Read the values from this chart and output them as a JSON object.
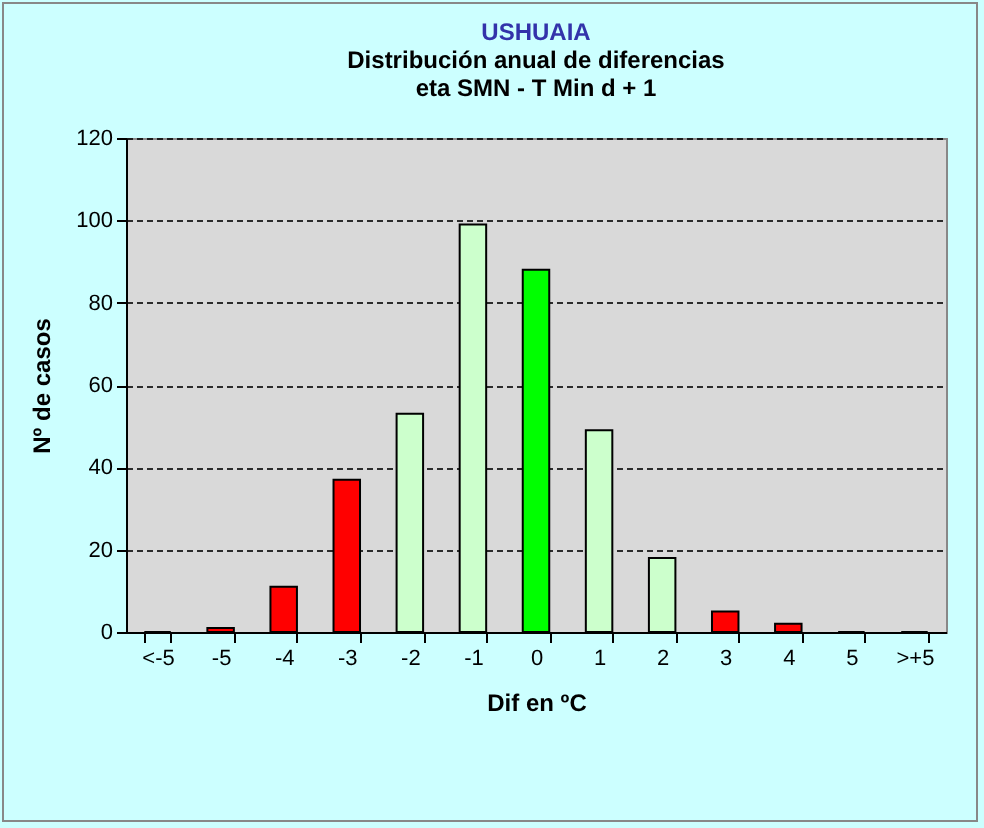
{
  "chart_data": {
    "type": "bar",
    "title": "USHUAIA",
    "subtitle": "Distribución anual de diferencias\neta SMN - T Min d + 1",
    "xlabel": "Dif en ºC",
    "ylabel": "Nº de casos",
    "categories": [
      "<-5",
      "-5",
      "-4",
      "-3",
      "-2",
      "-1",
      "0",
      "1",
      "2",
      "3",
      "4",
      "5",
      ">+5"
    ],
    "values": [
      0,
      1,
      11,
      37,
      53,
      99,
      88,
      49,
      18,
      5,
      2,
      0,
      0
    ],
    "colors": [
      "#ff0000",
      "#ff0000",
      "#ff0000",
      "#ff0000",
      "#ccffcc",
      "#ccffcc",
      "#00ff00",
      "#ccffcc",
      "#ccffcc",
      "#ff0000",
      "#ff0000",
      "#ff0000",
      "#ff0000"
    ],
    "ylim": [
      0,
      120
    ],
    "yticks": [
      0,
      20,
      40,
      60,
      80,
      100,
      120
    ],
    "grid": "y"
  }
}
